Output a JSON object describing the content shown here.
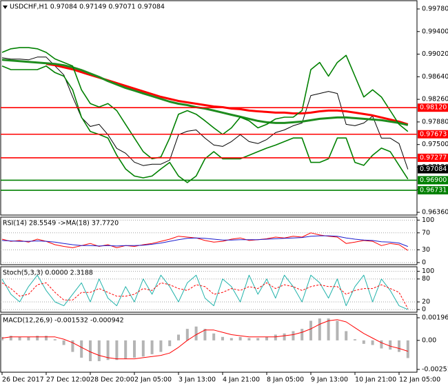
{
  "chart_data": [
    {
      "type": "line",
      "title": "USDCHF,H1  0.97084 0.97149 0.97071 0.97084",
      "categories": [
        "26 Dec 2017",
        null,
        null,
        null,
        null,
        "27 Dec 12:00",
        null,
        null,
        null,
        null,
        "28 Dec 20:00",
        null,
        null,
        null,
        null,
        "2 Jan 05:00",
        null,
        null,
        null,
        null,
        "3 Jan 13:00",
        null,
        null,
        null,
        null,
        "4 Jan 21:00",
        null,
        null,
        null,
        null,
        "8 Jan 05:00",
        null,
        null,
        null,
        null,
        "9 Jan 13:00",
        null,
        null,
        null,
        null,
        "10 Jan 21:00",
        null,
        null,
        null,
        null,
        "12 Jan 05:00",
        null
      ],
      "series": [
        {
          "color": "#000000",
          "values": [
            0.9896,
            0.98937,
            0.98937,
            0.98925,
            0.98971,
            0.98971,
            0.98821,
            0.98671,
            0.98301,
            0.97955,
            0.97804,
            0.97839,
            0.97666,
            0.97435,
            0.97354,
            0.97203,
            0.97146,
            0.97169,
            0.97169,
            0.97238,
            0.97666,
            0.97723,
            0.97746,
            0.97608,
            0.97492,
            0.97469,
            0.9755,
            0.97666,
            0.9755,
            0.97516,
            0.97585,
            0.977,
            0.97746,
            0.97816,
            0.97862,
            0.98324,
            0.98359,
            0.98394,
            0.98359,
            0.97839,
            0.97816,
            0.97862,
            0.97977,
            0.97608,
            0.97608,
            0.97516,
            0.97084
          ]
        },
        {
          "color": "#ff0000",
          "values": [
            null,
            null,
            null,
            null,
            null,
            0.98856,
            0.98833,
            0.98798,
            0.98764,
            0.98717,
            0.98671,
            0.98625,
            0.98579,
            0.98533,
            0.98486,
            0.9844,
            0.98394,
            0.98348,
            0.98302,
            0.98267,
            0.98232,
            0.98209,
            0.98186,
            0.98163,
            0.9814,
            0.98128,
            0.98105,
            0.98094,
            0.98071,
            0.98059,
            0.98048,
            0.98036,
            0.98036,
            0.98024,
            0.98024,
            0.98036,
            0.98059,
            0.98071,
            0.98071,
            0.98059,
            0.98036,
            0.98013,
            0.9799,
            0.97955,
            0.97921,
            0.97886,
            0.9784
          ]
        },
        {
          "color": "#1e8c1e",
          "values": [
            0.98925,
            0.98914,
            0.98902,
            0.98891,
            0.98879,
            0.98868,
            0.98856,
            0.98833,
            0.98798,
            0.98752,
            0.98694,
            0.98637,
            0.98567,
            0.9851,
            0.98452,
            0.98406,
            0.98359,
            0.98313,
            0.98267,
            0.98221,
            0.98186,
            0.98163,
            0.98128,
            0.98105,
            0.98071,
            0.98036,
            0.98001,
            0.97967,
            0.97932,
            0.97897,
            0.97874,
            0.97863,
            0.97863,
            0.97874,
            0.97886,
            0.97909,
            0.97932,
            0.97944,
            0.97955,
            0.97955,
            0.97944,
            0.97932,
            0.97921,
            0.97909,
            0.97886,
            0.97863,
            0.97828
          ]
        },
        {
          "color": "#008000",
          "values": [
            0.9905,
            0.9911,
            0.9913,
            0.9913,
            0.9911,
            0.9905,
            0.9894,
            0.9888,
            0.9882,
            0.9842,
            0.9819,
            0.9813,
            0.9819,
            0.9807,
            0.9784,
            0.9761,
            0.9738,
            0.9726,
            0.9729,
            0.9761,
            0.9801,
            0.9807,
            0.9801,
            0.979,
            0.9778,
            0.9767,
            0.9778,
            0.9796,
            0.979,
            0.9778,
            0.9784,
            0.9793,
            0.9796,
            0.9796,
            0.9807,
            0.9876,
            0.9888,
            0.9865,
            0.9888,
            0.99,
            0.9865,
            0.983,
            0.9842,
            0.983,
            0.9807,
            0.9784,
            0.9772
          ]
        },
        {
          "color": "#008000",
          "values": [
            0.9882,
            0.9876,
            0.9876,
            0.9876,
            0.9876,
            0.9882,
            0.9871,
            0.9865,
            0.9842,
            0.9796,
            0.9772,
            0.9767,
            0.9761,
            0.9732,
            0.9709,
            0.9697,
            0.9694,
            0.9697,
            0.9709,
            0.972,
            0.9697,
            0.9686,
            0.9697,
            0.9726,
            0.9738,
            0.9726,
            0.9726,
            0.9726,
            0.9732,
            0.9738,
            0.9744,
            0.9749,
            0.9755,
            0.9761,
            0.9761,
            0.972,
            0.972,
            0.9726,
            0.9761,
            0.9761,
            0.972,
            0.9715,
            0.9732,
            0.9744,
            0.9738,
            0.9715,
            0.9692
          ]
        }
      ],
      "ylim": [
        0.96314,
        0.99919
      ],
      "yticks": [
        {
          "value": 0.9978,
          "label": "0.99780"
        },
        {
          "value": 0.994,
          "label": "0.99400"
        },
        {
          "value": 0.9902,
          "label": "0.99020"
        },
        {
          "value": 0.9864,
          "label": "0.98640"
        },
        {
          "value": 0.9826,
          "label": "0.98260"
        },
        {
          "value": 0.9788,
          "label": "0.97880"
        },
        {
          "value": 0.975,
          "label": "0.97500"
        },
        {
          "value": 0.9712,
          "label": "0.97120"
        },
        {
          "value": 0.9674,
          "label": "0.96740"
        },
        {
          "value": 0.9636,
          "label": "0.96360"
        }
      ],
      "grid": false,
      "levels": [
        {
          "value": 0.9812,
          "label": "0.98120",
          "color": "#ff0000"
        },
        {
          "value": 0.97673,
          "label": "0.97673",
          "color": "#ff0000"
        },
        {
          "value": 0.97277,
          "label": "0.97277",
          "color": "#ff0000"
        },
        {
          "value": 0.969,
          "label": "0.96900",
          "color": "#008000"
        },
        {
          "value": 0.96731,
          "label": "0.96731",
          "color": "#008000"
        }
      ],
      "current": {
        "value": 0.97084,
        "label": "0.97084",
        "color": "#000000"
      }
    },
    {
      "type": "line",
      "title": "RSI(14) 28.5549 ->MA(18) 37.7720",
      "series": [
        {
          "color": "#ff0000",
          "values": [
            55,
            50,
            52,
            48,
            55,
            50,
            42,
            38,
            35,
            40,
            45,
            38,
            42,
            35,
            40,
            38,
            42,
            45,
            50,
            55,
            62,
            60,
            58,
            52,
            48,
            50,
            55,
            58,
            52,
            54,
            56,
            60,
            58,
            62,
            60,
            70,
            65,
            62,
            60,
            45,
            48,
            52,
            50,
            40,
            45,
            42,
            28.5549
          ]
        },
        {
          "color": "#1a1acd",
          "values": [
            52,
            51,
            50,
            50,
            51,
            50,
            48,
            45,
            42,
            40,
            40,
            39,
            40,
            39,
            40,
            40,
            41,
            43,
            46,
            50,
            54,
            57,
            58,
            57,
            55,
            53,
            53,
            54,
            54,
            54,
            55,
            56,
            57,
            58,
            59,
            62,
            63,
            63,
            62,
            58,
            55,
            53,
            52,
            49,
            48,
            46,
            37.772
          ]
        }
      ],
      "ylim": [
        -5,
        107
      ],
      "yticks": [
        0,
        30,
        70,
        100
      ],
      "grid": true
    },
    {
      "type": "line",
      "title": "Stoch(5,3,3) 0.0000 2.3188",
      "series": [
        {
          "color": "#20b2aa",
          "values": [
            80,
            40,
            20,
            60,
            90,
            50,
            20,
            10,
            40,
            70,
            20,
            80,
            30,
            10,
            60,
            20,
            80,
            40,
            90,
            60,
            20,
            70,
            90,
            30,
            10,
            80,
            60,
            20,
            90,
            40,
            80,
            30,
            90,
            60,
            20,
            90,
            70,
            30,
            80,
            10,
            60,
            90,
            20,
            80,
            50,
            10,
            0
          ]
        },
        {
          "color": "#ff0000",
          "dashed": true,
          "values": [
            70,
            55,
            35,
            40,
            65,
            70,
            45,
            25,
            25,
            45,
            45,
            55,
            45,
            35,
            35,
            40,
            55,
            50,
            70,
            65,
            55,
            50,
            65,
            60,
            40,
            45,
            55,
            50,
            60,
            55,
            70,
            55,
            65,
            60,
            50,
            60,
            65,
            60,
            60,
            40,
            50,
            55,
            55,
            65,
            55,
            45,
            2.3188
          ]
        }
      ],
      "ylim": [
        -7,
        112
      ],
      "yticks": [
        0,
        20,
        80,
        100
      ],
      "grid": true
    },
    {
      "type": "combo",
      "title": "MACD(12,26,9) -0.001532 -0.000942",
      "series": [
        {
          "kind": "bar",
          "color": "#b4b4b4",
          "values": [
            0.0003,
            0.0004,
            0.0003,
            0.0003,
            0.0004,
            0.0004,
            0.0001,
            -0.0004,
            -0.001,
            -0.0015,
            -0.0018,
            -0.0018,
            -0.0017,
            -0.0017,
            -0.0016,
            -0.0015,
            -0.0014,
            -0.0012,
            -0.001,
            -0.0005,
            0.0005,
            0.001,
            0.0012,
            0.001,
            0.0006,
            0.0003,
            0.0002,
            0.0003,
            0.0002,
            0.0002,
            0.0003,
            0.0005,
            0.0006,
            0.0008,
            0.001,
            0.0017,
            0.0019,
            0.0019,
            0.0017,
            0.0008,
            0.0001,
            -0.0003,
            -0.0004,
            -0.0007,
            -0.0008,
            -0.001,
            -0.001532
          ]
        },
        {
          "kind": "line",
          "color": "#ff0000",
          "values": [
            0.0002,
            0.0003,
            0.0003,
            0.0003,
            0.0003,
            0.0003,
            0.0003,
            0.0001,
            -0.0002,
            -0.0006,
            -0.001,
            -0.0013,
            -0.0015,
            -0.0016,
            -0.0016,
            -0.0016,
            -0.0015,
            -0.0014,
            -0.0013,
            -0.0011,
            -0.0006,
            0,
            0.0005,
            0.0009,
            0.0009,
            0.0007,
            0.0005,
            0.0004,
            0.0003,
            0.0003,
            0.0003,
            0.0003,
            0.0004,
            0.0005,
            0.0007,
            0.001,
            0.0014,
            0.0017,
            0.0018,
            0.0016,
            0.0011,
            0.0006,
            0.0002,
            -0.0002,
            -0.0005,
            -0.0007,
            -0.000942
          ]
        }
      ],
      "ylim": [
        -0.00276,
        0.00226
      ],
      "yticks": [
        {
          "value": -0.002518,
          "label": "-0.002518"
        },
        {
          "value": 0,
          "label": "0.00"
        },
        {
          "value": 0.001961,
          "label": "0.001961"
        }
      ],
      "grid": false
    }
  ]
}
